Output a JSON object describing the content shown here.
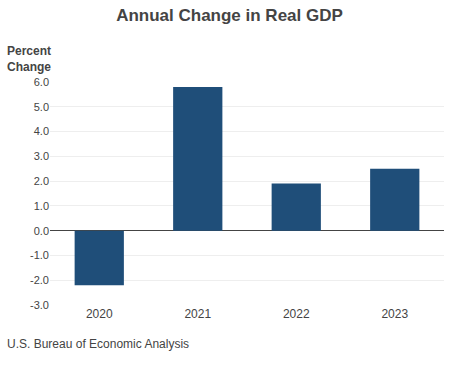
{
  "chart_data": {
    "type": "bar",
    "title": "Annual Change in Real GDP",
    "ylabel": "Percent\nChange",
    "annotations": [
      "U.S. Bureau of Economic Analysis"
    ],
    "categories": [
      "2020",
      "2021",
      "2022",
      "2023"
    ],
    "values": [
      -2.2,
      5.8,
      1.9,
      2.5
    ],
    "color": "#1F4E79",
    "ylim": [
      -3.0,
      6.0
    ],
    "yticks": [
      {
        "value": -3.0,
        "label": "-3.0"
      },
      {
        "value": -2.0,
        "label": "-2.0"
      },
      {
        "value": -1.0,
        "label": "-1.0"
      },
      {
        "value": 0.0,
        "label": "0.0"
      },
      {
        "value": 1.0,
        "label": "1.0"
      },
      {
        "value": 2.0,
        "label": "2.0"
      },
      {
        "value": 3.0,
        "label": "3.0"
      },
      {
        "value": 4.0,
        "label": "4.0"
      },
      {
        "value": 5.0,
        "label": "5.0"
      },
      {
        "value": 6.0,
        "label": "6.0"
      }
    ],
    "grid": true
  }
}
